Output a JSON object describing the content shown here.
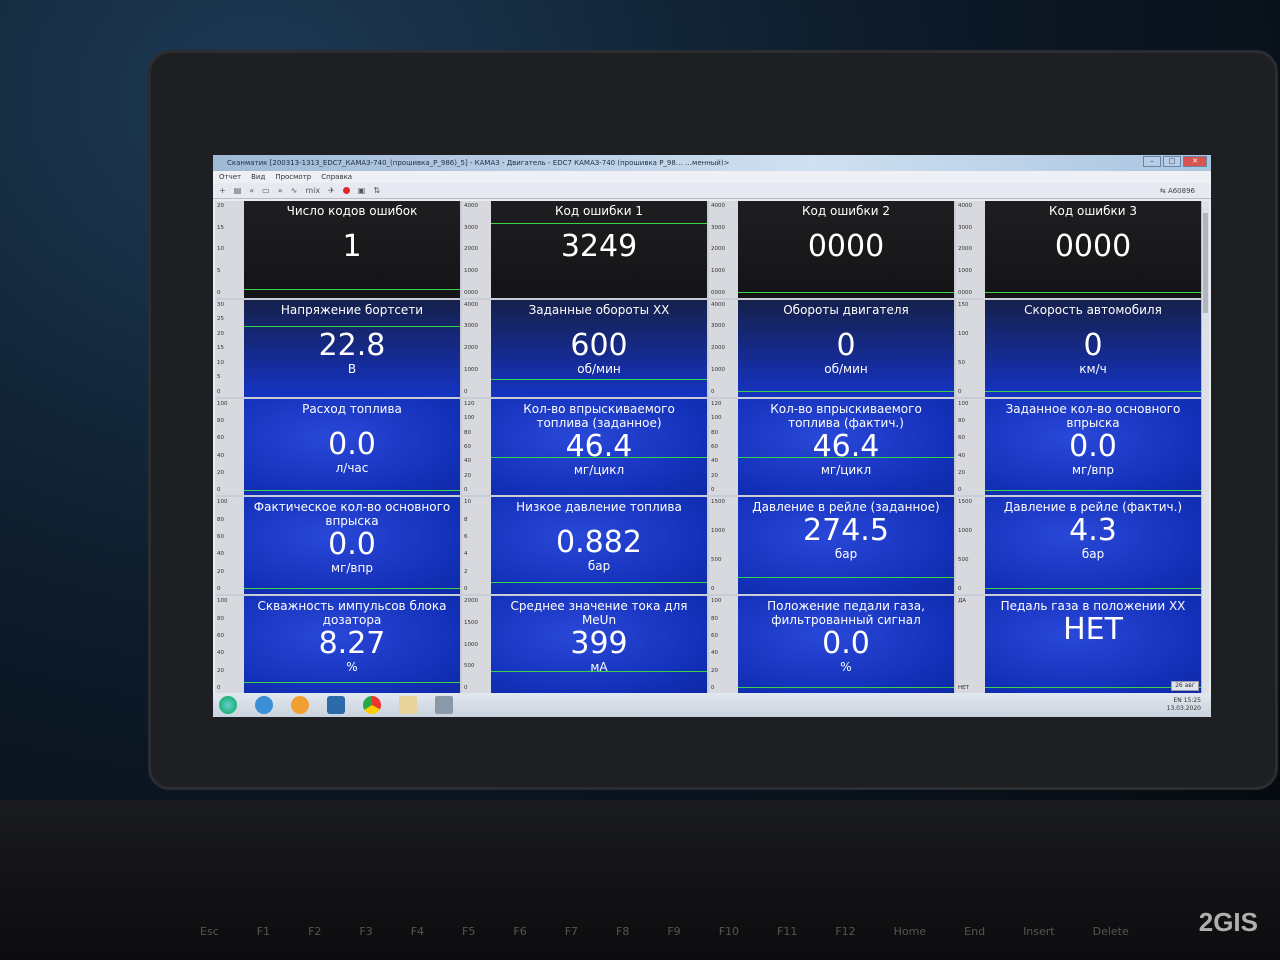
{
  "window": {
    "title": "Сканматик [200313-1313_EDC7_КАМАЗ-740_(прошивка_P_986)_5] - КАМАЗ - Двигатель - EDC7 КАМАЗ-740 (прошивка P_98… …менный)>"
  },
  "menu": [
    "Отчет",
    "Вид",
    "Просмотр",
    "Справка"
  ],
  "toolbar": {
    "mix_label": "mix",
    "user": "A60896",
    "cursor_glyph": "✋"
  },
  "colors": {
    "panel_blue": "#1533c4",
    "panel_dark": "#1b1b1d",
    "level_line": "#38d448"
  },
  "cells": [
    {
      "title": "Число кодов ошибок",
      "value": "1",
      "unit": "",
      "axis": [
        "20",
        "15",
        "10",
        "5",
        "0"
      ],
      "level": 0.05,
      "dark": true
    },
    {
      "title": "Код ошибки 1",
      "value": "3249",
      "unit": "",
      "axis": [
        "4000",
        "3000",
        "2000",
        "1000",
        "0000"
      ],
      "level": 0.81,
      "dark": true
    },
    {
      "title": "Код ошибки 2",
      "value": "0000",
      "unit": "",
      "axis": [
        "4000",
        "3000",
        "2000",
        "1000",
        "0000"
      ],
      "level": 0.02,
      "dark": true
    },
    {
      "title": "Код ошибки 3",
      "value": "0000",
      "unit": "",
      "axis": [
        "4000",
        "3000",
        "2000",
        "1000",
        "0000"
      ],
      "level": 0.02,
      "dark": true
    },
    {
      "title": "Напряжение бортсети",
      "value": "22.8",
      "unit": "В",
      "axis": [
        "30",
        "25",
        "20",
        "15",
        "10",
        "5",
        "0"
      ],
      "level": 0.76,
      "dark": true
    },
    {
      "title": "Заданные обороты XX",
      "value": "600",
      "unit": "об/мин",
      "axis": [
        "4000",
        "3000",
        "2000",
        "1000",
        "0"
      ],
      "level": 0.15
    },
    {
      "title": "Обороты двигателя",
      "value": "0",
      "unit": "об/мин",
      "axis": [
        "4000",
        "3000",
        "2000",
        "1000",
        "0"
      ],
      "level": 0.02
    },
    {
      "title": "Скорость автомобиля",
      "value": "0",
      "unit": "км/ч",
      "axis": [
        "150",
        "100",
        "50",
        "0"
      ],
      "level": 0.02
    },
    {
      "title": "Расход топлива",
      "value": "0.0",
      "unit": "л/час",
      "axis": [
        "100",
        "80",
        "60",
        "40",
        "20",
        "0"
      ],
      "level": 0.02
    },
    {
      "title": "Кол-во впрыскиваемого топлива (заданное)",
      "value": "46.4",
      "unit": "мг/цикл",
      "axis": [
        "120",
        "100",
        "80",
        "60",
        "40",
        "20",
        "0"
      ],
      "level": 0.39
    },
    {
      "title": "Кол-во впрыскиваемого топлива (фактич.)",
      "value": "46.4",
      "unit": "мг/цикл",
      "axis": [
        "120",
        "100",
        "80",
        "60",
        "40",
        "20",
        "0"
      ],
      "level": 0.39
    },
    {
      "title": "Заданное кол-во основного впрыска",
      "value": "0.0",
      "unit": "мг/впр",
      "axis": [
        "100",
        "80",
        "60",
        "40",
        "20",
        "0"
      ],
      "level": 0.02
    },
    {
      "title": "Фактическое кол-во основного впрыска",
      "value": "0.0",
      "unit": "мг/впр",
      "axis": [
        "100",
        "80",
        "60",
        "40",
        "20",
        "0"
      ],
      "level": 0.02
    },
    {
      "title": "Низкое давление топлива",
      "value": "0.882",
      "unit": "бар",
      "axis": [
        "10",
        "8",
        "6",
        "4",
        "2",
        "0"
      ],
      "level": 0.09
    },
    {
      "title": "Давление в рейле (заданное)",
      "value": "274.5",
      "unit": "бар",
      "axis": [
        "1500",
        "1000",
        "500",
        "0"
      ],
      "level": 0.15
    },
    {
      "title": "Давление в рейле (фактич.)",
      "value": "4.3",
      "unit": "бар",
      "axis": [
        "1500",
        "1000",
        "500",
        "0"
      ],
      "level": 0.02
    },
    {
      "title": "Скважность импульсов блока дозатора",
      "value": "8.27",
      "unit": "%",
      "axis": [
        "100",
        "80",
        "60",
        "40",
        "20",
        "0"
      ],
      "level": 0.08
    },
    {
      "title": "Среднее значение тока для MeUn",
      "value": "399",
      "unit": "мА",
      "axis": [
        "2000",
        "1500",
        "1000",
        "500",
        "0"
      ],
      "level": 0.2
    },
    {
      "title": "Положение педали газа, фильтрованный сигнал",
      "value": "0.0",
      "unit": "%",
      "axis": [
        "100",
        "80",
        "60",
        "40",
        "20",
        "0"
      ],
      "level": 0.02
    },
    {
      "title": "Педаль газа в положении XX",
      "value": "НЕТ",
      "unit": "",
      "axis": [
        "ДА",
        "НЕТ"
      ],
      "level": 0.02
    }
  ],
  "taskbar": {
    "lang": "EN",
    "time": "15:25",
    "date": "13.03.2020",
    "badge": "26 авг"
  },
  "keyboard": [
    "Esc",
    "F1",
    "F2",
    "F3",
    "F4",
    "F5",
    "F6",
    "F7",
    "F8",
    "F9",
    "F10",
    "F11",
    "F12",
    "Home",
    "End",
    "Insert",
    "Delete"
  ],
  "watermark": "2GIS"
}
